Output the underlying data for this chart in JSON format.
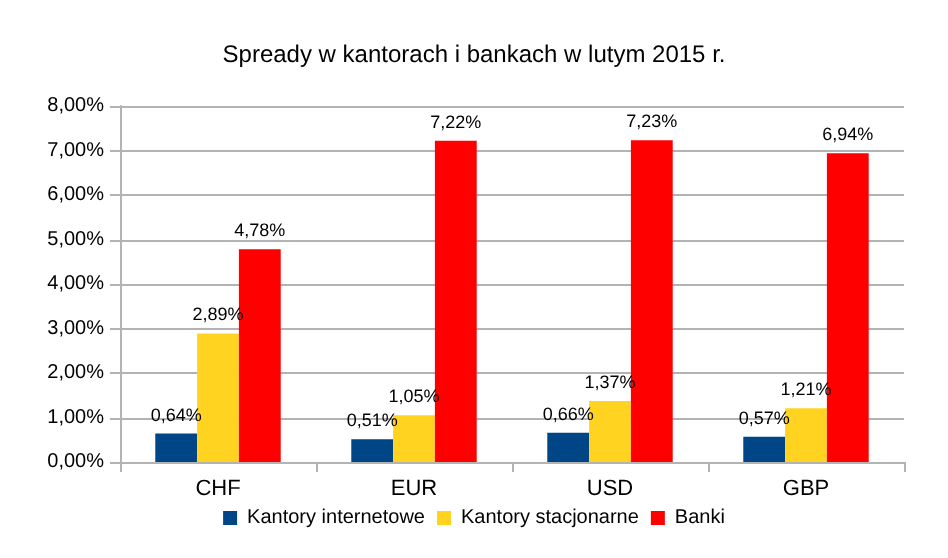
{
  "chart_data": {
    "type": "bar",
    "title": "Spready w kantorach i bankach w lutym 2015 r.",
    "categories": [
      "CHF",
      "EUR",
      "USD",
      "GBP"
    ],
    "series": [
      {
        "name": "Kantory internetowe",
        "color": "#004586",
        "values": [
          0.64,
          0.51,
          0.66,
          0.57
        ],
        "value_labels": [
          "0,64%",
          "0,51%",
          "0,66%",
          "0,57%"
        ]
      },
      {
        "name": "Kantory stacjonarne",
        "color": "#ffd320",
        "values": [
          2.89,
          1.05,
          1.37,
          1.21
        ],
        "value_labels": [
          "2,89%",
          "1,05%",
          "1,37%",
          "1,21%"
        ]
      },
      {
        "name": "Banki",
        "color": "#ff0000",
        "values": [
          4.78,
          7.22,
          7.23,
          6.94
        ],
        "value_labels": [
          "4,78%",
          "7,22%",
          "7,23%",
          "6,94%"
        ]
      }
    ],
    "ylim": [
      0,
      8
    ],
    "yticks": [
      {
        "value": 0,
        "label": "0,00%"
      },
      {
        "value": 1,
        "label": "1,00%"
      },
      {
        "value": 2,
        "label": "2,00%"
      },
      {
        "value": 3,
        "label": "3,00%"
      },
      {
        "value": 4,
        "label": "4,00%"
      },
      {
        "value": 5,
        "label": "5,00%"
      },
      {
        "value": 6,
        "label": "6,00%"
      },
      {
        "value": 7,
        "label": "7,00%"
      },
      {
        "value": 8,
        "label": "8,00%"
      }
    ],
    "grid": "y",
    "legend": "bottom"
  }
}
